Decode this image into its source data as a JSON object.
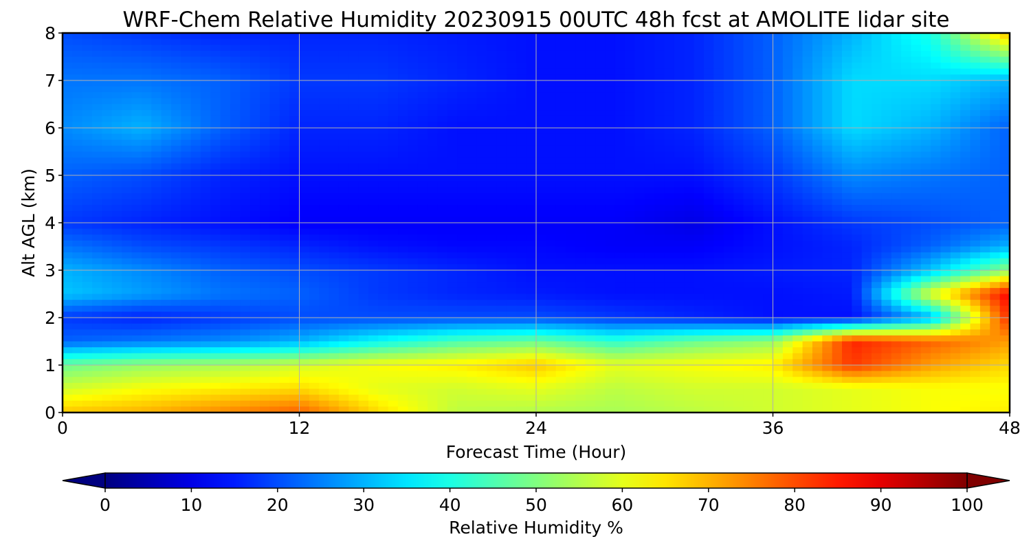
{
  "chart_data": {
    "type": "heatmap",
    "title": "WRF-Chem Relative Humidity 20230915 00UTC 48h fcst at AMOLITE lidar site",
    "xlabel": "Forecast Time (Hour)",
    "ylabel": "Alt AGL (km)",
    "xlim": [
      0,
      48
    ],
    "ylim": [
      0,
      8
    ],
    "xticks": [
      0,
      12,
      24,
      36,
      48
    ],
    "yticks": [
      0,
      1,
      2,
      3,
      4,
      5,
      6,
      7,
      8
    ],
    "grid": true,
    "colormap": "jet",
    "colorbar": {
      "label": "Relative Humidity %",
      "range": [
        0,
        100
      ],
      "ticks": [
        0,
        10,
        20,
        30,
        40,
        50,
        60,
        70,
        80,
        90,
        100
      ],
      "extend": "both",
      "placement": "bottom"
    },
    "x": [
      0,
      4,
      8,
      12,
      16,
      20,
      24,
      28,
      32,
      36,
      40,
      44,
      48
    ],
    "y": [
      0,
      0.5,
      1,
      1.5,
      2,
      2.5,
      3,
      3.5,
      4,
      5,
      6,
      7,
      8
    ],
    "z": [
      [
        68,
        70,
        74,
        78,
        66,
        56,
        55,
        54,
        56,
        58,
        60,
        62,
        64
      ],
      [
        58,
        62,
        64,
        66,
        60,
        58,
        60,
        56,
        58,
        58,
        60,
        62,
        62
      ],
      [
        48,
        52,
        54,
        58,
        62,
        64,
        68,
        60,
        62,
        64,
        82,
        72,
        66
      ],
      [
        22,
        24,
        26,
        30,
        38,
        45,
        48,
        42,
        48,
        52,
        84,
        78,
        72
      ],
      [
        18,
        16,
        18,
        20,
        20,
        20,
        20,
        18,
        16,
        14,
        14,
        30,
        84
      ],
      [
        32,
        28,
        24,
        22,
        18,
        16,
        15,
        14,
        14,
        14,
        15,
        60,
        88
      ],
      [
        30,
        26,
        22,
        20,
        18,
        16,
        14,
        14,
        14,
        15,
        16,
        32,
        52
      ],
      [
        24,
        20,
        18,
        16,
        14,
        13,
        13,
        12,
        12,
        14,
        16,
        22,
        30
      ],
      [
        18,
        16,
        14,
        12,
        12,
        12,
        12,
        12,
        10,
        14,
        18,
        20,
        22
      ],
      [
        22,
        20,
        16,
        14,
        14,
        14,
        14,
        14,
        14,
        18,
        26,
        24,
        22
      ],
      [
        26,
        30,
        22,
        16,
        16,
        14,
        14,
        14,
        16,
        22,
        34,
        30,
        22
      ],
      [
        24,
        24,
        22,
        18,
        18,
        16,
        14,
        14,
        16,
        22,
        34,
        34,
        30
      ],
      [
        20,
        18,
        16,
        16,
        16,
        15,
        14,
        14,
        16,
        22,
        30,
        40,
        70
      ]
    ]
  }
}
